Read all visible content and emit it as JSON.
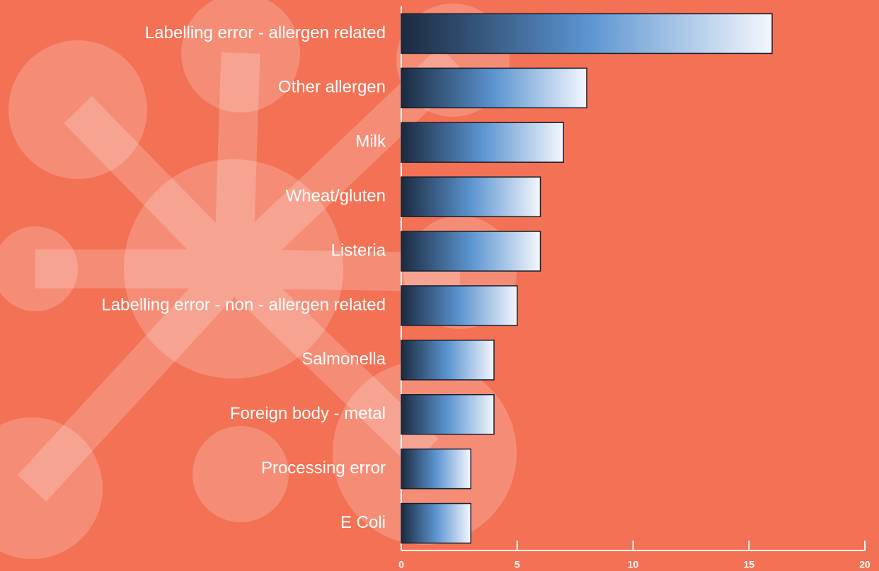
{
  "chart_data": {
    "type": "bar",
    "orientation": "horizontal",
    "categories": [
      "Labelling error - allergen related",
      "Other allergen",
      "Milk",
      "Wheat/gluten",
      "Listeria",
      "Labelling error - non - allergen related",
      "Salmonella",
      "Foreign body - metal",
      "Processing error",
      "E Coli"
    ],
    "values": [
      16,
      8,
      7,
      6,
      6,
      5,
      4,
      4,
      3,
      3
    ],
    "gradient": [
      "#1b2a3f",
      "#5b94d0",
      "#f4f7fd"
    ],
    "bar_stroke": "#17202e",
    "xlim": [
      0,
      20
    ],
    "xticks": [
      0,
      5,
      10,
      15,
      20
    ],
    "grid": false
  }
}
